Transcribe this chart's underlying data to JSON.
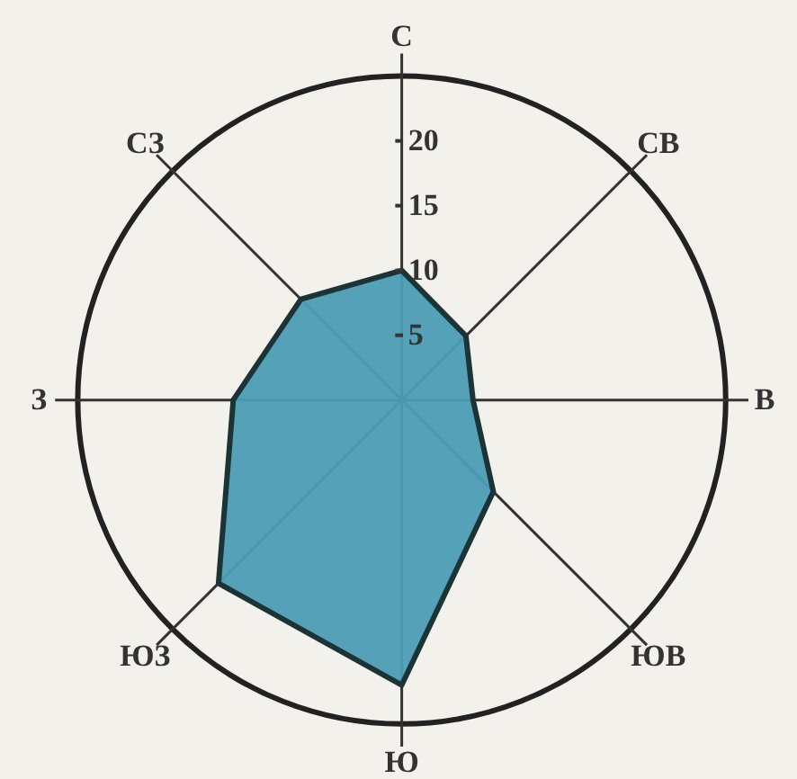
{
  "chart_data": {
    "type": "radar",
    "categories": [
      "С",
      "СВ",
      "В",
      "ЮВ",
      "Ю",
      "ЮЗ",
      "З",
      "СЗ"
    ],
    "series": [
      {
        "color": "#4b9cb5",
        "values": [
          10,
          7,
          5.5,
          10,
          22,
          20,
          13,
          11
        ]
      }
    ],
    "ylim": [
      0,
      25
    ],
    "yticks": [
      5,
      10,
      15,
      20
    ],
    "grid": true
  }
}
